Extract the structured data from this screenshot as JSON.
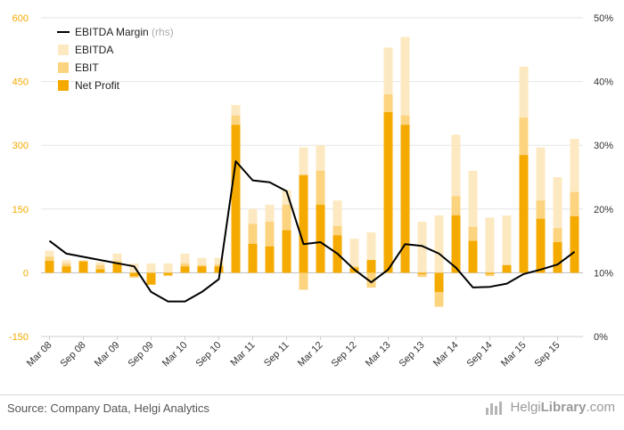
{
  "chart_data": {
    "type": "bar",
    "categories": [
      "Mar 08",
      "Jun 08",
      "Sep 08",
      "Dec 08",
      "Mar 09",
      "Jun 09",
      "Sep 09",
      "Dec 09",
      "Mar 10",
      "Jun 10",
      "Sep 10",
      "Dec 10",
      "Mar 11",
      "Jun 11",
      "Sep 11",
      "Dec 11",
      "Mar 12",
      "Jun 12",
      "Sep 12",
      "Dec 12",
      "Mar 13",
      "Jun 13",
      "Sep 13",
      "Dec 13",
      "Mar 14",
      "Jun 14",
      "Sep 14",
      "Dec 14",
      "Mar 15",
      "Jun 15",
      "Sep 15",
      "Dec 15"
    ],
    "x_tick_labels": [
      "Mar 08",
      "Sep 08",
      "Mar 09",
      "Sep 09",
      "Mar 10",
      "Sep 10",
      "Mar 11",
      "Sep 11",
      "Mar 12",
      "Sep 12",
      "Mar 13",
      "Sep 13",
      "Mar 14",
      "Sep 14",
      "Mar 15",
      "Sep 15"
    ],
    "series": [
      {
        "name": "EBITDA",
        "type": "bar",
        "color": "#fde9c1",
        "values": [
          52,
          30,
          30,
          25,
          45,
          22,
          22,
          22,
          45,
          35,
          35,
          395,
          150,
          160,
          195,
          295,
          300,
          170,
          80,
          95,
          530,
          555,
          120,
          135,
          325,
          240,
          130,
          135,
          485,
          295,
          225,
          315
        ]
      },
      {
        "name": "EBIT",
        "type": "bar",
        "color": "#fcd47f",
        "values": [
          38,
          22,
          25,
          18,
          28,
          -12,
          -5,
          -8,
          22,
          18,
          20,
          370,
          115,
          120,
          160,
          -40,
          240,
          110,
          15,
          -35,
          420,
          370,
          -10,
          -80,
          180,
          108,
          -8,
          15,
          365,
          170,
          105,
          190
        ]
      },
      {
        "name": "Net Profit",
        "type": "bar",
        "color": "#f5aa00",
        "values": [
          28,
          15,
          27,
          8,
          22,
          -8,
          -28,
          -5,
          15,
          15,
          15,
          348,
          68,
          62,
          100,
          230,
          160,
          88,
          12,
          30,
          378,
          348,
          -3,
          -45,
          135,
          75,
          -3,
          18,
          277,
          127,
          72,
          133
        ]
      },
      {
        "name": "EBITDA Margin",
        "type": "line",
        "axis": "right",
        "color": "#000000",
        "values": [
          15.0,
          13.0,
          12.5,
          12.0,
          11.5,
          11.0,
          7.0,
          5.5,
          5.5,
          7.0,
          9.0,
          27.5,
          24.5,
          24.2,
          22.8,
          14.5,
          14.8,
          13.0,
          10.5,
          8.5,
          10.5,
          14.5,
          14.2,
          13.0,
          10.8,
          7.7,
          7.8,
          8.3,
          9.8,
          10.5,
          11.3,
          13.3
        ]
      }
    ],
    "legend": [
      {
        "label": "EBITDA Margin",
        "suffix": "(rhs)",
        "kind": "line",
        "color": "#000000"
      },
      {
        "label": "EBITDA",
        "kind": "bar",
        "color": "#fde9c1"
      },
      {
        "label": "EBIT",
        "kind": "bar",
        "color": "#fcd47f"
      },
      {
        "label": "Net Profit",
        "kind": "bar",
        "color": "#f5aa00"
      }
    ],
    "legend_position": "top-left",
    "y_left": {
      "ticks": [
        600,
        450,
        300,
        150,
        0,
        -150
      ],
      "min": -150,
      "max": 600,
      "tick_color": "#f5aa00"
    },
    "y_right": {
      "ticks": [
        "50%",
        "40%",
        "30%",
        "20%",
        "10%",
        "0%"
      ],
      "values": [
        50,
        40,
        30,
        20,
        10,
        0
      ],
      "min": 0,
      "max": 50
    },
    "grid": true
  },
  "footer": {
    "source": "Source: Company Data, Helgi Analytics",
    "brand_light": "Helgi",
    "brand_bold": "Library",
    "brand_suffix": ".com"
  }
}
